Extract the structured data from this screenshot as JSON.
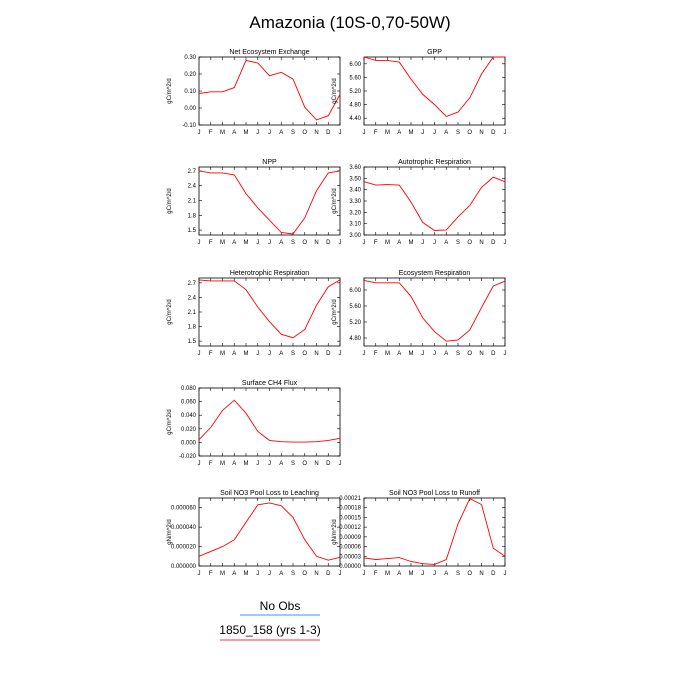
{
  "title": "Amazonia (10S-0,70-50W)",
  "months": [
    "J",
    "F",
    "M",
    "A",
    "M",
    "J",
    "J",
    "A",
    "S",
    "O",
    "N",
    "D",
    "J"
  ],
  "chart_data": [
    {
      "type": "line",
      "title": "Net Ecosystem Exchange",
      "ylabel": "gC/m^2/d",
      "ylim": [
        -0.1,
        0.3
      ],
      "yticks": [
        "-0.10",
        "0.00",
        "0.10",
        "0.20",
        "0.30"
      ],
      "ytick_values": [
        -0.1,
        0.0,
        0.1,
        0.2,
        0.3
      ],
      "series": [
        {
          "values": [
            0.085,
            0.095,
            0.095,
            0.12,
            0.28,
            0.265,
            0.19,
            0.21,
            0.17,
            0.005,
            -0.07,
            -0.045,
            0.08
          ]
        }
      ]
    },
    {
      "type": "line",
      "title": "GPP",
      "ylabel": "gC/m^2/d",
      "ylim": [
        4.2,
        6.2
      ],
      "yticks": [
        "4.40",
        "4.80",
        "5.20",
        "5.60",
        "6.00"
      ],
      "ytick_values": [
        4.4,
        4.8,
        5.2,
        5.6,
        6.0
      ],
      "series": [
        {
          "values": [
            6.2,
            6.1,
            6.1,
            6.05,
            5.55,
            5.1,
            4.8,
            4.45,
            4.58,
            5.0,
            5.7,
            6.2,
            6.2
          ]
        }
      ]
    },
    {
      "type": "line",
      "title": "NPP",
      "ylabel": "gC/m^2/d",
      "ylim": [
        1.4,
        2.78
      ],
      "yticks": [
        "1.5",
        "1.8",
        "2.1",
        "2.4",
        "2.7"
      ],
      "ytick_values": [
        1.5,
        1.8,
        2.1,
        2.4,
        2.7
      ],
      "series": [
        {
          "values": [
            2.7,
            2.66,
            2.66,
            2.62,
            2.24,
            1.95,
            1.7,
            1.45,
            1.42,
            1.75,
            2.3,
            2.66,
            2.7
          ]
        }
      ]
    },
    {
      "type": "line",
      "title": "Autotrophic Respiration",
      "ylabel": "gC/m^2/d",
      "ylim": [
        3.0,
        3.6
      ],
      "yticks": [
        "3.00",
        "3.10",
        "3.20",
        "3.30",
        "3.40",
        "3.50",
        "3.60"
      ],
      "ytick_values": [
        3.0,
        3.1,
        3.2,
        3.3,
        3.4,
        3.5,
        3.6
      ],
      "series": [
        {
          "values": [
            3.47,
            3.44,
            3.445,
            3.44,
            3.29,
            3.11,
            3.04,
            3.045,
            3.16,
            3.26,
            3.42,
            3.51,
            3.47
          ]
        }
      ]
    },
    {
      "type": "line",
      "title": "Heterotrophic Respiration",
      "ylabel": "gC/m^2/d",
      "ylim": [
        1.4,
        2.8
      ],
      "yticks": [
        "1.5",
        "1.8",
        "2.1",
        "2.4",
        "2.7"
      ],
      "ytick_values": [
        1.5,
        1.8,
        2.1,
        2.4,
        2.7
      ],
      "series": [
        {
          "values": [
            2.76,
            2.74,
            2.74,
            2.74,
            2.56,
            2.2,
            1.9,
            1.64,
            1.57,
            1.74,
            2.24,
            2.62,
            2.76
          ]
        }
      ]
    },
    {
      "type": "line",
      "title": "Ecosystem Respiration",
      "ylabel": "gC/m^2/d",
      "ylim": [
        4.6,
        6.3
      ],
      "yticks": [
        "4.80",
        "5.20",
        "5.60",
        "6.00"
      ],
      "ytick_values": [
        4.8,
        5.2,
        5.6,
        6.0
      ],
      "series": [
        {
          "values": [
            6.24,
            6.18,
            6.18,
            6.18,
            5.84,
            5.3,
            4.96,
            4.72,
            4.75,
            5.0,
            5.56,
            6.1,
            6.22
          ]
        }
      ]
    },
    {
      "type": "line",
      "title": "Surface CH4 Flux",
      "ylabel": "gC/m^2/d",
      "ylim": [
        -0.02,
        0.08
      ],
      "yticks": [
        "-0.020",
        "0.000",
        "0.020",
        "0.040",
        "0.060",
        "0.080"
      ],
      "ytick_values": [
        -0.02,
        0.0,
        0.02,
        0.04,
        0.06,
        0.08
      ],
      "series": [
        {
          "values": [
            0.004,
            0.022,
            0.047,
            0.062,
            0.043,
            0.016,
            0.003,
            0.001,
            0.0005,
            0.0005,
            0.001,
            0.003,
            0.006
          ]
        }
      ]
    },
    null,
    {
      "type": "line",
      "title": "Soil NO3 Pool Loss to Leaching",
      "ylabel": "gN/m^2/d",
      "ylim": [
        0.0,
        7e-05
      ],
      "yticks": [
        "0.000000",
        "0.000020",
        "0.000040",
        "0.000060"
      ],
      "ytick_values": [
        0.0,
        2e-05,
        4e-05,
        6e-05
      ],
      "series": [
        {
          "values": [
            1e-05,
            1.5e-05,
            2e-05,
            2.7e-05,
            4.5e-05,
            6.3e-05,
            6.5e-05,
            6.2e-05,
            5e-05,
            2.7e-05,
            1e-05,
            6e-06,
            9e-06
          ]
        }
      ]
    },
    {
      "type": "line",
      "title": "Soil NO3 Pool Loss to Runoff",
      "ylabel": "gN/m^2/d",
      "ylim": [
        0.0,
        0.00021
      ],
      "yticks": [
        "0.00000",
        "0.00003",
        "0.00006",
        "0.00009",
        "0.00012",
        "0.00015",
        "0.00018",
        "0.00021"
      ],
      "ytick_values": [
        0.0,
        3e-05,
        6e-05,
        9e-05,
        0.00012,
        0.00015,
        0.00018,
        0.00021
      ],
      "series": [
        {
          "values": [
            2.5e-05,
            2e-05,
            2.3e-05,
            2.6e-05,
            1.4e-05,
            7e-06,
            5e-06,
            2e-05,
            0.00013,
            0.000208,
            0.00019,
            5.5e-05,
            3e-05
          ]
        }
      ]
    }
  ],
  "legend": [
    {
      "label": "No Obs",
      "color": "#4a8fe7"
    },
    {
      "label": "1850_158 (yrs 1-3)",
      "color": "#e8384f"
    }
  ],
  "colors": {
    "line": "#ff0000",
    "axis": "#000000"
  }
}
